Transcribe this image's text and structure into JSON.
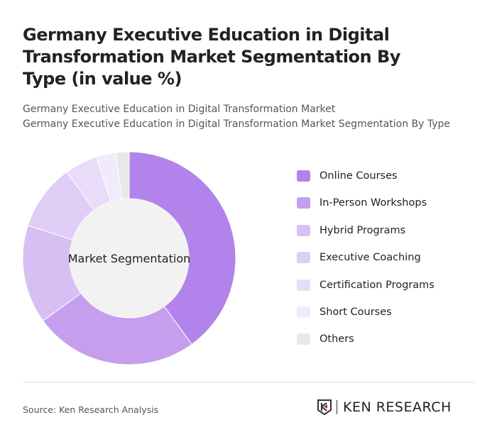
{
  "title": "Germany Executive Education in Digital Transformation Market Segmentation By Type (in value %)",
  "subtitle1": "Germany Executive Education in Digital Transformation Market",
  "subtitle2": "Germany Executive Education in Digital Transformation Market Segmentation By Type",
  "source": "Source: Ken Research Analysis",
  "logo_text": "KEN RESEARCH",
  "chart_data": {
    "type": "pie",
    "variant": "donut",
    "center_label": "Market Segmentation",
    "categories": [
      "Online Courses",
      "In-Person Workshops",
      "Hybrid Programs",
      "Executive Coaching",
      "Certification Programs",
      "Short Courses",
      "Others"
    ],
    "values": [
      40,
      25,
      15,
      10,
      5,
      3,
      2
    ],
    "colors": [
      "#b283ea",
      "#c59eee",
      "#d7bff4",
      "#e0cdf6",
      "#e8dcf9",
      "#f1eafc",
      "#e8e8e8"
    ],
    "legend": "right"
  }
}
